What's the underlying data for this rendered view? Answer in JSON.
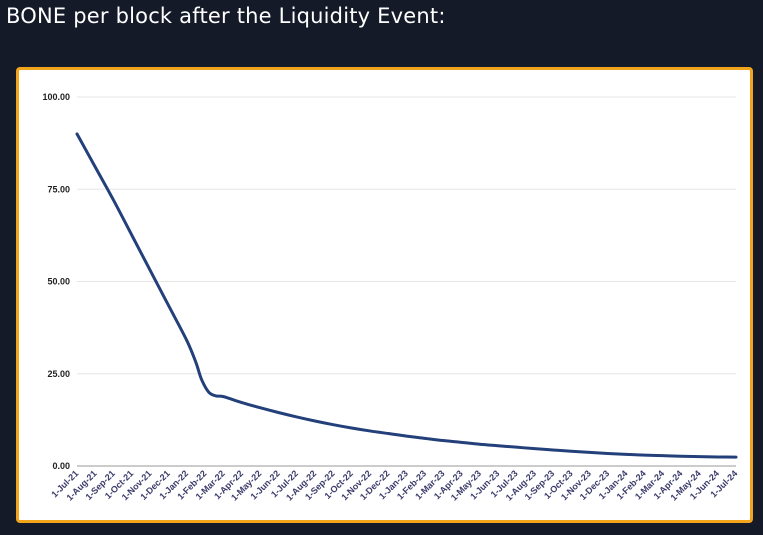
{
  "heading": "BONE per block after the Liquidity Event:",
  "colors": {
    "background": "#141a27",
    "frame": "#f2a51c",
    "line": "#23407a",
    "grid": "#e6e6e6"
  },
  "chart_data": {
    "type": "line",
    "title": "BONE per block after the Liquidity Event:",
    "xlabel": "",
    "ylabel": "",
    "ylim": [
      0,
      100
    ],
    "yticks": [
      "100.00",
      "75.00",
      "50.00",
      "25.00",
      "0.00"
    ],
    "ytick_values": [
      100,
      75,
      50,
      25,
      0
    ],
    "categories": [
      "1-Jul-21",
      "1-Aug-21",
      "1-Sep-21",
      "1-Oct-21",
      "1-Nov-21",
      "1-Dec-21",
      "1-Jan-22",
      "1-Feb-22",
      "1-Mar-22",
      "1-Apr-22",
      "1-May-22",
      "1-Jun-22",
      "1-Jul-22",
      "1-Aug-22",
      "1-Sep-22",
      "1-Oct-22",
      "1-Nov-22",
      "1-Dec-22",
      "1-Jan-23",
      "1-Feb-23",
      "1-Mar-23",
      "1-Apr-23",
      "1-May-23",
      "1-Jun-23",
      "1-Jul-23",
      "1-Aug-23",
      "1-Sep-23",
      "1-Oct-23",
      "1-Nov-23",
      "1-Dec-23",
      "1-Jan-24",
      "1-Feb-24",
      "1-Mar-24",
      "1-Apr-24",
      "1-May-24",
      "1-Jun-24",
      "1-Jul-24"
    ],
    "series": [
      {
        "name": "BONE per block",
        "x": [
          0,
          1,
          2,
          3,
          4,
          5,
          6,
          6.5,
          6.8,
          7.2,
          7.6,
          8,
          9,
          10,
          11,
          12,
          13,
          14,
          15,
          16,
          17,
          18,
          19,
          20,
          21,
          22,
          23,
          24,
          25,
          26,
          27,
          28,
          29,
          30,
          31,
          32,
          33,
          34,
          35,
          36
        ],
        "values": [
          90,
          81,
          72,
          62.5,
          53,
          43.5,
          34,
          28,
          23.5,
          20,
          19,
          18.8,
          17.2,
          15.8,
          14.5,
          13.3,
          12.2,
          11.2,
          10.3,
          9.5,
          8.8,
          8.1,
          7.5,
          6.9,
          6.4,
          5.9,
          5.5,
          5.1,
          4.7,
          4.35,
          4.0,
          3.7,
          3.4,
          3.15,
          2.95,
          2.8,
          2.65,
          2.55,
          2.45,
          2.4
        ]
      }
    ]
  }
}
